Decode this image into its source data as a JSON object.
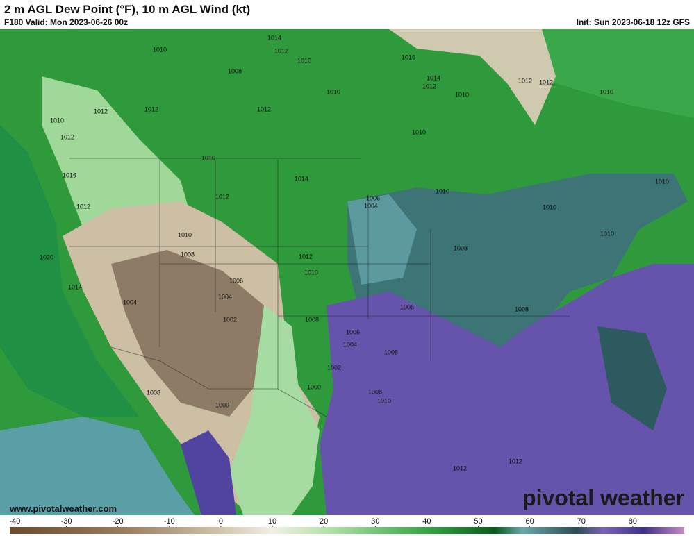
{
  "header": {
    "title": "2 m AGL Dew Point (°F), 10 m AGL Wind (kt)",
    "valid": "F180 Valid: Mon 2023-06-26 00z",
    "init": "Init: Sun 2023-06-18 12z GFS"
  },
  "map": {
    "isobar_labels": [
      "1014",
      "1012",
      "1010",
      "1010",
      "1008",
      "1016",
      "1014",
      "1012",
      "1010",
      "1012",
      "1012",
      "1010",
      "1012",
      "1012",
      "1012",
      "1010",
      "1010",
      "1012",
      "1010",
      "1010",
      "1016",
      "1014",
      "1012",
      "1012",
      "1006",
      "1004",
      "1010",
      "1010",
      "1010",
      "1010",
      "1010",
      "1008",
      "1008",
      "1020",
      "1012",
      "1010",
      "1006",
      "1014",
      "1004",
      "1004",
      "1002",
      "1008",
      "1006",
      "1008",
      "1006",
      "1004",
      "1008",
      "1002",
      "1000",
      "1008",
      "1008",
      "1010",
      "1000",
      "1012",
      "1012"
    ]
  },
  "footer": {
    "website": "www.pivotalweather.com",
    "logo": "pivotal weather"
  },
  "colorbar": {
    "range": [
      -41,
      90
    ],
    "ticks": [
      -40,
      -30,
      -20,
      -10,
      0,
      10,
      20,
      30,
      40,
      50,
      60,
      70,
      80
    ]
  }
}
